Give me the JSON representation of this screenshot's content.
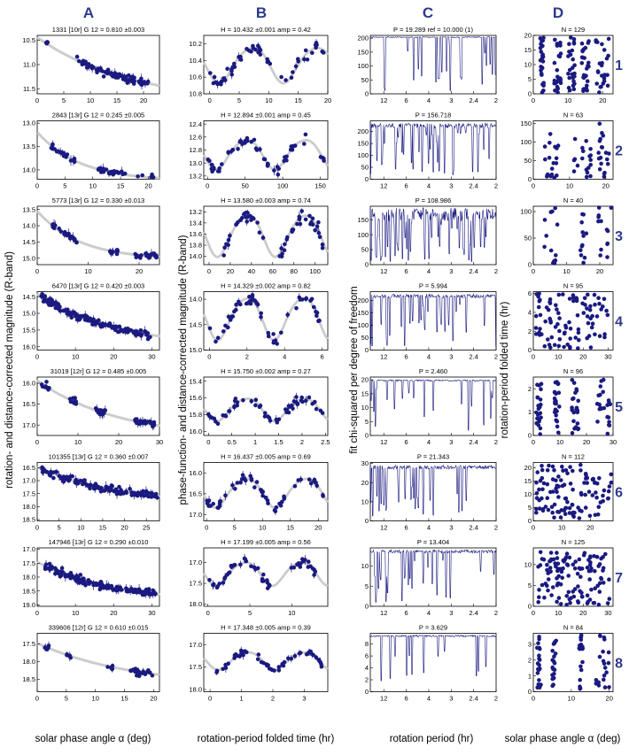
{
  "figure": {
    "column_letters": [
      "A",
      "B",
      "C",
      "D"
    ],
    "row_numbers": [
      "1",
      "2",
      "3",
      "4",
      "5",
      "6",
      "7",
      "8"
    ],
    "ylabel_A": "rotation- and distance-corrected magnitude (R-band)",
    "ylabel_B": "phase-function- and distance-corrected magnitude (R-band)",
    "ylabel_C": "fit chi-squared per degree of freedom",
    "ylabel_D": "rotation-period folded time (hr)",
    "xlabel_A": "solar phase angle α (deg)",
    "xlabel_B": "rotation-period folded time (hr)",
    "xlabel_C": "rotation period (hr)",
    "xlabel_D": "solar phase angle α (deg)",
    "colors": {
      "points": "#1a1a80",
      "fit": "#cccccc",
      "periodogram": "#1a1a80",
      "letters": "#2e3a8c"
    }
  },
  "chart_data": [
    {
      "row": 1,
      "A": {
        "type": "scatter",
        "title": "1331 [10r] G 12 = 0.810 ±0.003",
        "xlim": [
          0,
          23
        ],
        "xticks": [
          0,
          5,
          10,
          15,
          20
        ],
        "ylim": [
          11.6,
          10.4
        ],
        "yticks": [
          "10.5",
          "11.0",
          "11.5"
        ],
        "range": [
          1.5,
          22.5
        ],
        "fit": [
          10.55,
          11.42
        ],
        "curv": 1.2,
        "density": [
          [
            1.5,
            2
          ],
          [
            7.5,
            12
          ],
          [
            12,
            16
          ],
          [
            15,
            22.5
          ]
        ]
      },
      "B": {
        "type": "scatter",
        "title": "H = 10.432 ±0.001 amp = 0.42",
        "xlim": [
          -1,
          20
        ],
        "xticks": [
          0,
          5,
          10,
          15,
          20
        ],
        "ylim": [
          10.8,
          10.1
        ],
        "yticks": [
          "10.2",
          "10.4",
          "10.6",
          "10.8"
        ],
        "period": 10.9,
        "amp": 0.42,
        "mean": 10.44,
        "range": [
          0,
          19.5
        ]
      },
      "C": {
        "type": "line",
        "title": "P = 19.289 ref = 10.000 (1)",
        "ylim": [
          0,
          210
        ],
        "yticks": [
          "0",
          "50",
          "100",
          "150",
          "200"
        ],
        "xticks": [
          "12",
          "6",
          "4",
          "3",
          "2.4",
          "2"
        ],
        "base": 205,
        "noise": 3,
        "nspikes": 22,
        "best": 19.289
      },
      "D": {
        "type": "scatter",
        "title": "N = 129",
        "xlim": [
          0,
          23
        ],
        "xticks": [
          "0",
          "10",
          "20"
        ],
        "ylim": [
          0,
          20
        ],
        "yticks": [
          "0",
          "5",
          "10",
          "15",
          "20"
        ],
        "n": 129,
        "ymax": 19.3,
        "xclusters": [
          [
            2,
            3
          ],
          [
            6,
            8
          ],
          [
            10,
            12
          ],
          [
            14,
            16
          ],
          [
            18,
            22
          ]
        ]
      }
    },
    {
      "row": 2,
      "A": {
        "type": "scatter",
        "title": "2843 [13r] G 12 = 0.245 ±0.005",
        "xlim": [
          0,
          22
        ],
        "xticks": [
          0,
          5,
          10,
          15,
          20
        ],
        "ylim": [
          14.2,
          12.95
        ],
        "yticks": [
          "13.0",
          "13.5",
          "14.0"
        ],
        "range": [
          2.5,
          21
        ],
        "fit": [
          13.48,
          14.17
        ],
        "curv": 2.4,
        "density": [
          [
            2.5,
            7
          ],
          [
            11,
            16
          ],
          [
            18,
            21
          ]
        ]
      },
      "B": {
        "type": "scatter",
        "title": "H = 12.894 ±0.001 amp = 0.45",
        "xlim": [
          -5,
          160
        ],
        "xticks": [
          0,
          50,
          100,
          150
        ],
        "ylim": [
          13.25,
          12.35
        ],
        "yticks": [
          "12.4",
          "12.6",
          "12.8",
          "13.0",
          "13.2"
        ],
        "period": 78,
        "amp": 0.45,
        "mean": 12.85,
        "range": [
          0,
          155
        ]
      },
      "C": {
        "type": "line",
        "title": "P = 156.718",
        "ylim": [
          0,
          245
        ],
        "yticks": [
          "0",
          "50",
          "100",
          "150",
          "200"
        ],
        "xticks": [
          "12",
          "6",
          "4",
          "3",
          "2.4",
          "2"
        ],
        "base": 235,
        "noise": 20,
        "nspikes": 40,
        "best": 156.718
      },
      "D": {
        "type": "scatter",
        "title": "N = 63",
        "xlim": [
          0,
          22
        ],
        "xticks": [
          "0",
          "10",
          "20"
        ],
        "ylim": [
          0,
          157
        ],
        "yticks": [
          "0",
          "50",
          "100",
          "150"
        ],
        "n": 63,
        "ymax": 156.7,
        "xclusters": [
          [
            3,
            7
          ],
          [
            11,
            16
          ],
          [
            18,
            21
          ]
        ]
      }
    },
    {
      "row": 3,
      "A": {
        "type": "scatter",
        "title": "5773 [13r] G 12 = 0.330 ±0.013",
        "xlim": [
          0,
          24
        ],
        "xticks": [
          0,
          10,
          20
        ],
        "ylim": [
          15.2,
          13.4
        ],
        "yticks": [
          "13.5",
          "14.0",
          "14.5",
          "15.0"
        ],
        "range": [
          3,
          23.5
        ],
        "fit": [
          14.0,
          14.95
        ],
        "curv": 2.5,
        "density": [
          [
            3,
            8
          ],
          [
            14,
            16
          ],
          [
            19,
            23.5
          ]
        ]
      },
      "B": {
        "type": "scatter",
        "title": "H = 13.580 ±0.003 amp = 0.74",
        "xlim": [
          -5,
          112
        ],
        "xticks": [
          0,
          20,
          40,
          60,
          80,
          100
        ],
        "ylim": [
          14.15,
          13.1
        ],
        "yticks": [
          "13.2",
          "13.4",
          "13.6",
          "13.8",
          "14.0"
        ],
        "period": 54.5,
        "amp": 0.74,
        "mean": 13.6,
        "range": [
          12,
          108
        ]
      },
      "C": {
        "type": "line",
        "title": "P = 108.986",
        "ylim": [
          0,
          195
        ],
        "yticks": [
          "0",
          "50",
          "100",
          "150"
        ],
        "xticks": [
          "12",
          "6",
          "4",
          "3",
          "2.4",
          "2"
        ],
        "base": 190,
        "noise": 45,
        "nspikes": 55,
        "best": 108.986
      },
      "D": {
        "type": "scatter",
        "title": "N = 40",
        "xlim": [
          0,
          24
        ],
        "xticks": [
          "0",
          "10",
          "20"
        ],
        "ylim": [
          0,
          110
        ],
        "yticks": [
          "0",
          "50",
          "100"
        ],
        "n": 40,
        "ymax": 109,
        "xclusters": [
          [
            3,
            8
          ],
          [
            14,
            16
          ],
          [
            19,
            23.5
          ]
        ]
      }
    },
    {
      "row": 4,
      "A": {
        "type": "scatter",
        "title": "6470 [13r] G 12 = 0.420 ±0.003",
        "xlim": [
          0,
          32
        ],
        "xticks": [
          0,
          10,
          20,
          30
        ],
        "ylim": [
          16.1,
          14.35
        ],
        "yticks": [
          "14.5",
          "15.0",
          "15.5",
          "16.0"
        ],
        "range": [
          1,
          30
        ],
        "fit": [
          14.5,
          15.65
        ],
        "curv": 1.5,
        "density": [
          [
            1,
            30
          ]
        ]
      },
      "B": {
        "type": "scatter",
        "title": "H = 14.329 ±0.002 amp = 0.82",
        "xlim": [
          -0.3,
          6.3
        ],
        "xticks": [
          0,
          2,
          4,
          6
        ],
        "ylim": [
          15.0,
          13.85
        ],
        "yticks": [
          "14.0",
          "14.5",
          "15.0"
        ],
        "period": 3.0,
        "amp": 0.82,
        "mean": 14.35,
        "range": [
          0,
          6
        ]
      },
      "C": {
        "type": "line",
        "title": "P = 5.994",
        "ylim": [
          0,
          235
        ],
        "yticks": [
          "0",
          "50",
          "100",
          "150",
          "200"
        ],
        "xticks": [
          "12",
          "6",
          "4",
          "3",
          "2.4",
          "2"
        ],
        "base": 225,
        "noise": 15,
        "nspikes": 30,
        "best": 5.994
      },
      "D": {
        "type": "scatter",
        "title": "N = 95",
        "xlim": [
          0,
          32
        ],
        "xticks": [
          "0",
          "10",
          "20",
          "30"
        ],
        "ylim": [
          0,
          6.2
        ],
        "yticks": [
          "0",
          "2",
          "4",
          "6"
        ],
        "n": 95,
        "ymax": 6.0,
        "xclusters": [
          [
            1,
            30
          ]
        ]
      }
    },
    {
      "row": 5,
      "A": {
        "type": "scatter",
        "title": "31019 [12r] G 12 = 0.485 ±0.005",
        "xlim": [
          0,
          30
        ],
        "xticks": [
          0,
          10,
          20,
          30
        ],
        "ylim": [
          17.25,
          15.85
        ],
        "yticks": [
          "16.0",
          "16.5",
          "17.0"
        ],
        "range": [
          1,
          29
        ],
        "fit": [
          16.0,
          17.0
        ],
        "curv": 1.4,
        "density": [
          [
            1,
            3
          ],
          [
            8,
            10
          ],
          [
            14,
            17
          ],
          [
            24,
            29
          ]
        ]
      },
      "B": {
        "type": "scatter",
        "title": "H = 15.750 ±0.002 amp = 0.27",
        "xlim": [
          -0.1,
          2.55
        ],
        "xticks": [
          0,
          0.5,
          1,
          1.5,
          2,
          2.5
        ],
        "ylim": [
          16.05,
          15.35
        ],
        "yticks": [
          "15.4",
          "15.6",
          "15.8",
          "16.0"
        ],
        "period": 1.23,
        "amp": 0.27,
        "mean": 15.73,
        "range": [
          0,
          2.46
        ]
      },
      "C": {
        "type": "line",
        "title": "P = 2.460",
        "ylim": [
          0,
          21
        ],
        "yticks": [
          "0",
          "5",
          "10",
          "15",
          "20"
        ],
        "xticks": [
          "12",
          "6",
          "4",
          "3",
          "2.4",
          "2"
        ],
        "base": 20,
        "noise": 0.5,
        "nspikes": 18,
        "best": 2.46
      },
      "D": {
        "type": "scatter",
        "title": "N = 96",
        "xlim": [
          0,
          30
        ],
        "xticks": [
          "0",
          "10",
          "20",
          "30"
        ],
        "ylim": [
          0,
          2.5
        ],
        "yticks": [
          "0",
          "1",
          "2"
        ],
        "n": 96,
        "ymax": 2.46,
        "xclusters": [
          [
            1,
            3
          ],
          [
            8,
            10
          ],
          [
            14,
            17
          ],
          [
            24,
            29
          ]
        ]
      }
    },
    {
      "row": 6,
      "A": {
        "type": "scatter",
        "title": "101355 [13r] G 12 = 0.360 ±0.007",
        "xlim": [
          0,
          28
        ],
        "xticks": [
          0,
          5,
          10,
          15,
          20,
          25
        ],
        "ylim": [
          18.55,
          16.3
        ],
        "yticks": [
          "16.5",
          "17.0",
          "17.5",
          "18.0",
          "18.5"
        ],
        "range": [
          1,
          27.5
        ],
        "fit": [
          16.55,
          17.6
        ],
        "curv": 1.4,
        "density": [
          [
            1,
            27.5
          ]
        ]
      },
      "B": {
        "type": "scatter",
        "title": "H = 16.437 ±0.005 amp = 0.69",
        "xlim": [
          -0.5,
          21.7
        ],
        "xticks": [
          0,
          5,
          10,
          15,
          20
        ],
        "ylim": [
          17.15,
          15.75
        ],
        "yticks": [
          "16.0",
          "16.5",
          "17.0"
        ],
        "period": 10.7,
        "amp": 0.69,
        "mean": 16.45,
        "range": [
          0,
          21.3
        ]
      },
      "C": {
        "type": "line",
        "title": "P = 21.343",
        "ylim": [
          0,
          30.5
        ],
        "yticks": [
          "0",
          "10",
          "20",
          "30"
        ],
        "xticks": [
          "12",
          "6",
          "4",
          "3",
          "2.4",
          "2"
        ],
        "base": 29,
        "noise": 2,
        "nspikes": 28,
        "best": 21.343
      },
      "D": {
        "type": "scatter",
        "title": "N = 112",
        "xlim": [
          0,
          28
        ],
        "xticks": [
          "0",
          "10",
          "20"
        ],
        "ylim": [
          0,
          22
        ],
        "yticks": [
          "0",
          "5",
          "10",
          "15",
          "20"
        ],
        "n": 112,
        "ymax": 21.3,
        "xclusters": [
          [
            1,
            27.5
          ]
        ]
      }
    },
    {
      "row": 7,
      "A": {
        "type": "scatter",
        "title": "147946 [13r] G 12 = 0.290 ±0.010",
        "xlim": [
          0,
          32
        ],
        "xticks": [
          0,
          10,
          20,
          30
        ],
        "ylim": [
          19.05,
          16.95
        ],
        "yticks": [
          "17.0",
          "17.5",
          "18.0",
          "18.5",
          "19.0"
        ],
        "range": [
          2,
          31
        ],
        "fit": [
          17.6,
          18.6
        ],
        "curv": 1.6,
        "density": [
          [
            2,
            31
          ]
        ]
      },
      "B": {
        "type": "scatter",
        "title": "H = 17.199 ±0.005 amp = 0.56",
        "xlim": [
          -0.5,
          14.3
        ],
        "xticks": [
          0,
          5,
          10
        ],
        "ylim": [
          18.05,
          16.65
        ],
        "yticks": [
          "17.0",
          "17.5",
          "18.0"
        ],
        "period": 6.7,
        "amp": 0.56,
        "mean": 17.25,
        "range": [
          0,
          13.4
        ]
      },
      "C": {
        "type": "line",
        "title": "P = 13.404",
        "ylim": [
          0,
          14.5
        ],
        "yticks": [
          "0",
          "5",
          "10"
        ],
        "xticks": [
          "12",
          "6",
          "4",
          "3",
          "2.4",
          "2"
        ],
        "base": 14,
        "noise": 0.8,
        "nspikes": 26,
        "best": 13.404
      },
      "D": {
        "type": "scatter",
        "title": "N = 125",
        "xlim": [
          0,
          32
        ],
        "xticks": [
          "0",
          "10",
          "20",
          "30"
        ],
        "ylim": [
          0,
          14
        ],
        "yticks": [
          "0",
          "5",
          "10"
        ],
        "n": 125,
        "ymax": 13.4,
        "xclusters": [
          [
            2,
            31
          ]
        ]
      }
    },
    {
      "row": 8,
      "A": {
        "type": "scatter",
        "title": "339606 [12r] G 12 = 0.610 ±0.015",
        "xlim": [
          0,
          21
        ],
        "xticks": [
          0,
          5,
          10,
          15,
          20
        ],
        "ylim": [
          18.85,
          17.2
        ],
        "yticks": [
          "17.5",
          "18.0",
          "18.5"
        ],
        "range": [
          1,
          20
        ],
        "fit": [
          17.55,
          18.35
        ],
        "curv": 1.2,
        "density": [
          [
            1,
            2
          ],
          [
            5,
            6
          ],
          [
            12,
            13
          ],
          [
            16,
            20
          ]
        ]
      },
      "B": {
        "type": "scatter",
        "title": "H = 17.348 ±0.005 amp = 0.39",
        "xlim": [
          -0.2,
          3.75
        ],
        "xticks": [
          0,
          1,
          2,
          3
        ],
        "ylim": [
          18.05,
          16.75
        ],
        "yticks": [
          "17.0",
          "17.5",
          "18.0"
        ],
        "period": 1.8,
        "amp": 0.39,
        "mean": 17.35,
        "range": [
          0,
          3.63
        ]
      },
      "C": {
        "type": "line",
        "title": "P = 3.629",
        "ylim": [
          0,
          9.8
        ],
        "yticks": [
          "0",
          "2",
          "4",
          "6",
          "8"
        ],
        "xticks": [
          "12",
          "6",
          "4",
          "3",
          "2.4",
          "2"
        ],
        "base": 9.5,
        "noise": 0.3,
        "nspikes": 12,
        "best": 3.629
      },
      "D": {
        "type": "scatter",
        "title": "N = 84",
        "xlim": [
          0,
          21
        ],
        "xticks": [
          "0",
          "10",
          "20"
        ],
        "ylim": [
          0,
          3.7
        ],
        "yticks": [
          "0",
          "1",
          "2",
          "3"
        ],
        "n": 84,
        "ymax": 3.6,
        "xclusters": [
          [
            1,
            2
          ],
          [
            5,
            6
          ],
          [
            12,
            13
          ],
          [
            16,
            20
          ]
        ]
      }
    }
  ]
}
